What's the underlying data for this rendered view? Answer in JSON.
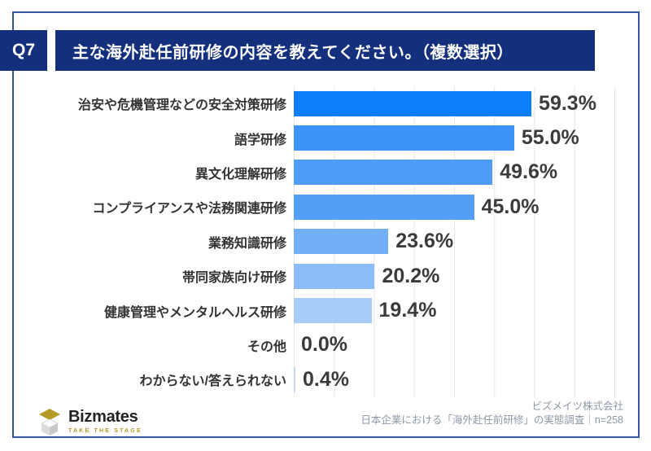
{
  "slide": {
    "question_id": "Q7",
    "question_title": "主な海外赴任前研修の内容を教えてください。（複数選択）",
    "accent_color": "#142f7c",
    "border_color": "#35549f"
  },
  "chart_data": {
    "type": "bar",
    "orientation": "horizontal",
    "title": "主な海外赴任前研修の内容を教えてください。（複数選択）",
    "categories": [
      "治安や危機管理などの安全対策研修",
      "語学研修",
      "異文化理解研修",
      "コンプライアンスや法務関連研修",
      "業務知識研修",
      "帯同家族向け研修",
      "健康管理やメンタルヘルス研修",
      "その他",
      "わからない/答えられない"
    ],
    "values": [
      59.3,
      55.0,
      49.6,
      45.0,
      23.6,
      20.2,
      19.4,
      0.0,
      0.4
    ],
    "value_labels": [
      "59.3%",
      "55.0%",
      "49.6%",
      "45.0%",
      "23.6%",
      "20.2%",
      "19.4%",
      "0.0%",
      "0.4%"
    ],
    "xlim": [
      0,
      80
    ],
    "gridline_interval_pct": 10,
    "grid": true,
    "legend": false,
    "bar_colors": [
      "#0b7ef9",
      "#3d93f7",
      "#4c9cf8",
      "#529ff7",
      "#73aef8",
      "#8cbcf9",
      "#a9cdfb",
      "#bcd7fc",
      "#c5d9f6"
    ],
    "gridline_color": "#e7e7e7"
  },
  "footer": {
    "logo": {
      "name": "Bizmates",
      "tagline": "TAKE THE STAGE",
      "diamond_color": "#b59a25",
      "text_color": "#232323"
    },
    "source_line1": "ビズメイツ株式会社",
    "source_line2": "日本企業における「海外赴任前研修」の実態調査｜n=258"
  }
}
